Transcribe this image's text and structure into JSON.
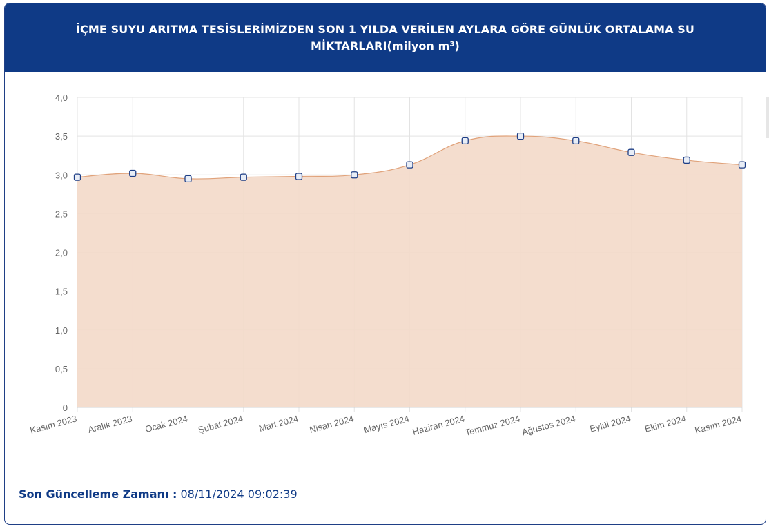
{
  "header": {
    "title": "İÇME SUYU ARITMA TESİSLERİMİZDEN SON 1 YILDA VERİLEN AYLARA GÖRE GÜNLÜK ORTALAMA SU MİKTARLARI(milyon m³)"
  },
  "footer": {
    "label": "Son Güncelleme Zamanı :",
    "timestamp": "08/11/2024 09:02:39"
  },
  "colors": {
    "header_bg": "#0f3a86",
    "area_fill": "#f3d9c9",
    "line": "#e0a27a",
    "marker_border": "#1f3f86",
    "grid": "#e3e3e3"
  },
  "chart_data": {
    "type": "area",
    "categories": [
      "Kasım 2023",
      "Aralık 2023",
      "Ocak 2024",
      "Şubat 2024",
      "Mart 2024",
      "Nisan 2024",
      "Mayıs 2024",
      "Haziran 2024",
      "Temmuz 2024",
      "Ağustos 2024",
      "Eylül 2024",
      "Ekim 2024",
      "Kasım 2024"
    ],
    "values": [
      2.97,
      3.02,
      2.95,
      2.97,
      2.98,
      3.0,
      3.13,
      3.44,
      3.5,
      3.44,
      3.29,
      3.19,
      3.13
    ],
    "ylim": [
      0,
      4
    ],
    "yticks": [
      "0",
      "0,5",
      "1,0",
      "1,5",
      "2,0",
      "2,5",
      "3,0",
      "3,5",
      "4,0"
    ],
    "ytick_values": [
      0,
      0.5,
      1.0,
      1.5,
      2.0,
      2.5,
      3.0,
      3.5,
      4.0
    ],
    "grid": true,
    "legend": "none"
  }
}
